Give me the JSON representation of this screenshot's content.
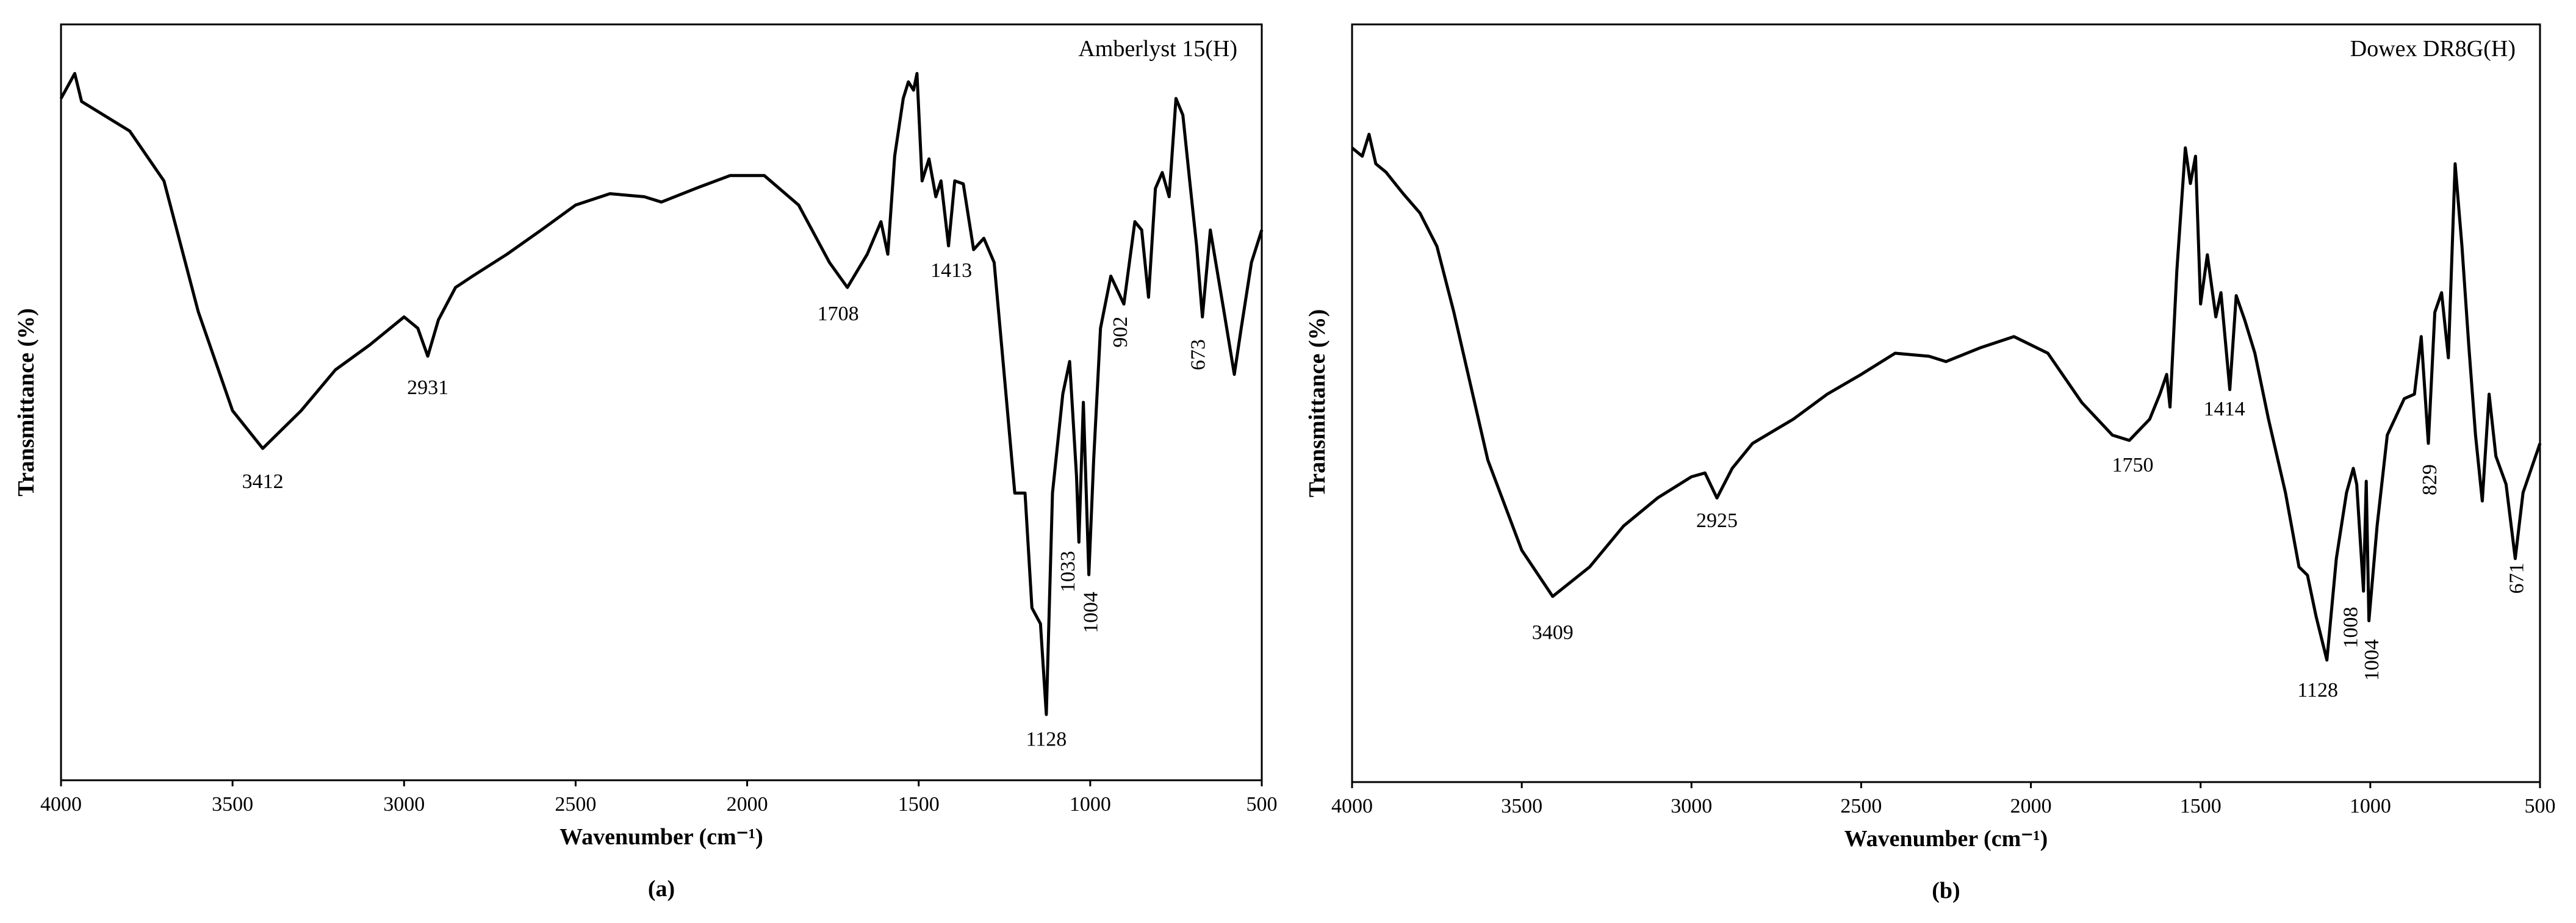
{
  "chart_data": [
    {
      "type": "line",
      "title": "Amberlyst 15(H)",
      "xlabel": "Wavenumber (cm⁻¹)",
      "ylabel": "Transmittance (%)",
      "caption": "(a)",
      "color": "#000000",
      "xlim": [
        4000,
        500
      ],
      "xticks": [
        4000,
        3500,
        3000,
        2500,
        2000,
        1500,
        1000,
        500
      ],
      "ylim": [
        0,
        100
      ],
      "x": [
        4000,
        3960,
        3940,
        3800,
        3700,
        3600,
        3500,
        3412,
        3300,
        3200,
        3100,
        3000,
        2960,
        2931,
        2900,
        2850,
        2800,
        2700,
        2600,
        2500,
        2400,
        2300,
        2250,
        2150,
        2050,
        1950,
        1850,
        1760,
        1708,
        1650,
        1610,
        1590,
        1570,
        1545,
        1530,
        1515,
        1505,
        1490,
        1470,
        1450,
        1435,
        1413,
        1395,
        1370,
        1340,
        1310,
        1280,
        1250,
        1220,
        1190,
        1170,
        1145,
        1128,
        1110,
        1080,
        1060,
        1040,
        1033,
        1020,
        1004,
        990,
        970,
        940,
        902,
        870,
        850,
        830,
        810,
        790,
        770,
        750,
        730,
        710,
        690,
        673,
        650,
        630,
        610,
        580,
        560,
        530,
        500
      ],
      "values": [
        90.2,
        93.5,
        89.8,
        85.9,
        79.3,
        62,
        48.9,
        43.9,
        48.9,
        54.3,
        57.6,
        61.3,
        59.8,
        56.1,
        60.9,
        65.2,
        66.7,
        69.6,
        72.8,
        76.1,
        77.6,
        77.2,
        76.5,
        78.3,
        80,
        80,
        76.1,
        68.5,
        65.2,
        69.6,
        73.9,
        69.6,
        82.6,
        90.2,
        92.4,
        91.3,
        93.5,
        79.3,
        82.2,
        77.2,
        79.3,
        70.7,
        79.3,
        78.9,
        70.2,
        71.7,
        68.5,
        53.3,
        38,
        38,
        22.8,
        20.7,
        8.7,
        38,
        51.1,
        55.4,
        40.2,
        31.5,
        50,
        27.2,
        42.4,
        59.8,
        66.7,
        63,
        73.9,
        72.8,
        63.9,
        78.3,
        80.4,
        77.2,
        90.2,
        88,
        79.3,
        70.7,
        61.3,
        72.8,
        67.4,
        62,
        53.7,
        59.8,
        68.5,
        72.8
      ],
      "annotations": [
        {
          "text": "3412",
          "x": 3412,
          "y": 39.3,
          "rotate": false
        },
        {
          "text": "2931",
          "x": 2931,
          "y": 51.7,
          "rotate": false
        },
        {
          "text": "1708",
          "x": 1735,
          "y": 61.5,
          "rotate": false
        },
        {
          "text": "1413",
          "x": 1405,
          "y": 67.2,
          "rotate": false
        },
        {
          "text": "1128",
          "x": 1128,
          "y": 5.2,
          "rotate": false
        },
        {
          "text": "1033",
          "x": 1060,
          "y": 27.6,
          "rotate": true
        },
        {
          "text": "1004",
          "x": 993,
          "y": 22.2,
          "rotate": true
        },
        {
          "text": "902",
          "x": 907,
          "y": 59.3,
          "rotate": true
        },
        {
          "text": "673",
          "x": 680,
          "y": 56.3,
          "rotate": true
        }
      ]
    },
    {
      "type": "line",
      "title": "Dowex DR8G(H)",
      "xlabel": "Wavenumber (cm⁻¹)",
      "ylabel": "Transmittance (%)",
      "caption": "(b)",
      "color": "#000000",
      "xlim": [
        4000,
        500
      ],
      "xticks": [
        4000,
        3500,
        3000,
        2500,
        2000,
        1500,
        1000,
        500
      ],
      "ylim": [
        0,
        100
      ],
      "x": [
        4000,
        3970,
        3950,
        3930,
        3900,
        3850,
        3800,
        3750,
        3700,
        3600,
        3500,
        3409,
        3300,
        3200,
        3100,
        3000,
        2960,
        2925,
        2880,
        2820,
        2700,
        2600,
        2500,
        2400,
        2300,
        2250,
        2150,
        2050,
        1950,
        1850,
        1760,
        1710,
        1650,
        1620,
        1600,
        1590,
        1570,
        1545,
        1530,
        1515,
        1500,
        1480,
        1455,
        1440,
        1414,
        1395,
        1370,
        1340,
        1300,
        1250,
        1210,
        1185,
        1160,
        1128,
        1100,
        1070,
        1050,
        1040,
        1020,
        1012,
        1004,
        980,
        950,
        900,
        870,
        850,
        829,
        810,
        790,
        770,
        750,
        730,
        710,
        690,
        670,
        650,
        630,
        600,
        573,
        550,
        500
      ],
      "values": [
        83.7,
        82.6,
        85.5,
        81.6,
        80.5,
        77.7,
        75.1,
        70.7,
        62,
        42.5,
        30.6,
        24.5,
        28.4,
        33.8,
        37.5,
        40.3,
        40.8,
        37.5,
        41.4,
        44.7,
        47.9,
        51.2,
        53.8,
        56.6,
        56.2,
        55.5,
        57.3,
        58.8,
        56.6,
        50.1,
        45.8,
        45.1,
        47.9,
        51.2,
        53.8,
        49.5,
        67.5,
        83.7,
        79,
        82.6,
        63.1,
        69.6,
        61.4,
        64.6,
        51.8,
        64.2,
        61,
        56.6,
        47.9,
        38.2,
        28.4,
        27.3,
        21.9,
        16.1,
        29.5,
        38.2,
        41.4,
        39.3,
        25.2,
        39.7,
        21.3,
        33.8,
        45.8,
        50.6,
        51.2,
        58.8,
        44.7,
        62,
        64.6,
        56,
        81.6,
        70.7,
        57.7,
        45.8,
        37.1,
        51.2,
        43,
        39.3,
        29.5,
        38.2,
        44.7
      ],
      "annotations": [
        {
          "text": "3409",
          "x": 3409,
          "y": 19.5,
          "rotate": false
        },
        {
          "text": "2925",
          "x": 2925,
          "y": 34.3,
          "rotate": false
        },
        {
          "text": "1750",
          "x": 1700,
          "y": 41.6,
          "rotate": false
        },
        {
          "text": "1414",
          "x": 1430,
          "y": 49,
          "rotate": false
        },
        {
          "text": "1128",
          "x": 1155,
          "y": 11.9,
          "rotate": false
        },
        {
          "text": "1008",
          "x": 1052,
          "y": 20.4,
          "rotate": true
        },
        {
          "text": "1004",
          "x": 990,
          "y": 16.1,
          "rotate": true
        },
        {
          "text": "829",
          "x": 820,
          "y": 39.9,
          "rotate": true
        },
        {
          "text": "671",
          "x": 563,
          "y": 26.9,
          "rotate": true
        }
      ]
    }
  ]
}
